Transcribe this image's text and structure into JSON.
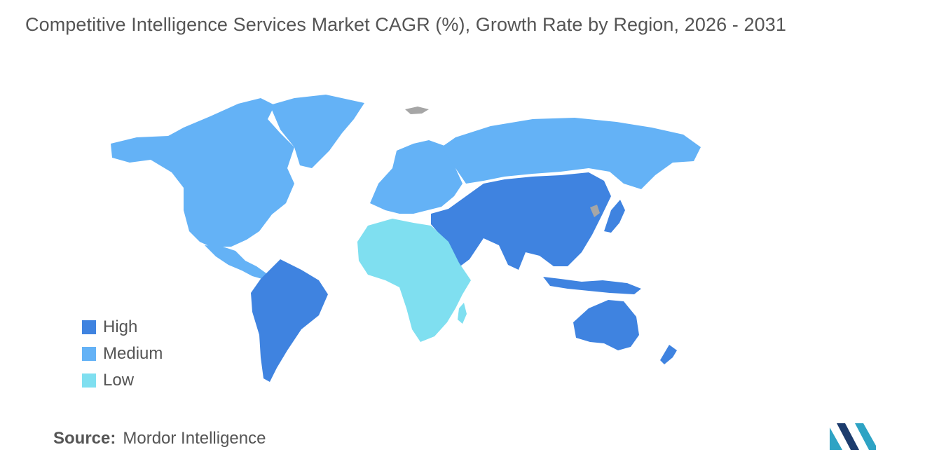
{
  "title": "Competitive Intelligence Services Market CAGR (%), Growth Rate by Region, 2026 - 2031",
  "legend": [
    {
      "label": "High",
      "color": "#3f83e0"
    },
    {
      "label": "Medium",
      "color": "#64b2f6"
    },
    {
      "label": "Low",
      "color": "#7fdff0"
    }
  ],
  "no_data_color": "#a6a6a6",
  "regions": {
    "north_america": "Medium",
    "europe": "Medium",
    "russia_north_asia": "Medium",
    "greenland": "Medium",
    "south_america": "High",
    "asia_pacific": "High",
    "middle_east": "High",
    "australia_new_zealand": "High",
    "africa": "Low"
  },
  "source": {
    "prefix": "Source:",
    "name": "Mordor Intelligence"
  },
  "logo": {
    "icon": "mordor-intelligence-logo",
    "colors": [
      "#2ea3c4",
      "#1c3c6d"
    ]
  }
}
